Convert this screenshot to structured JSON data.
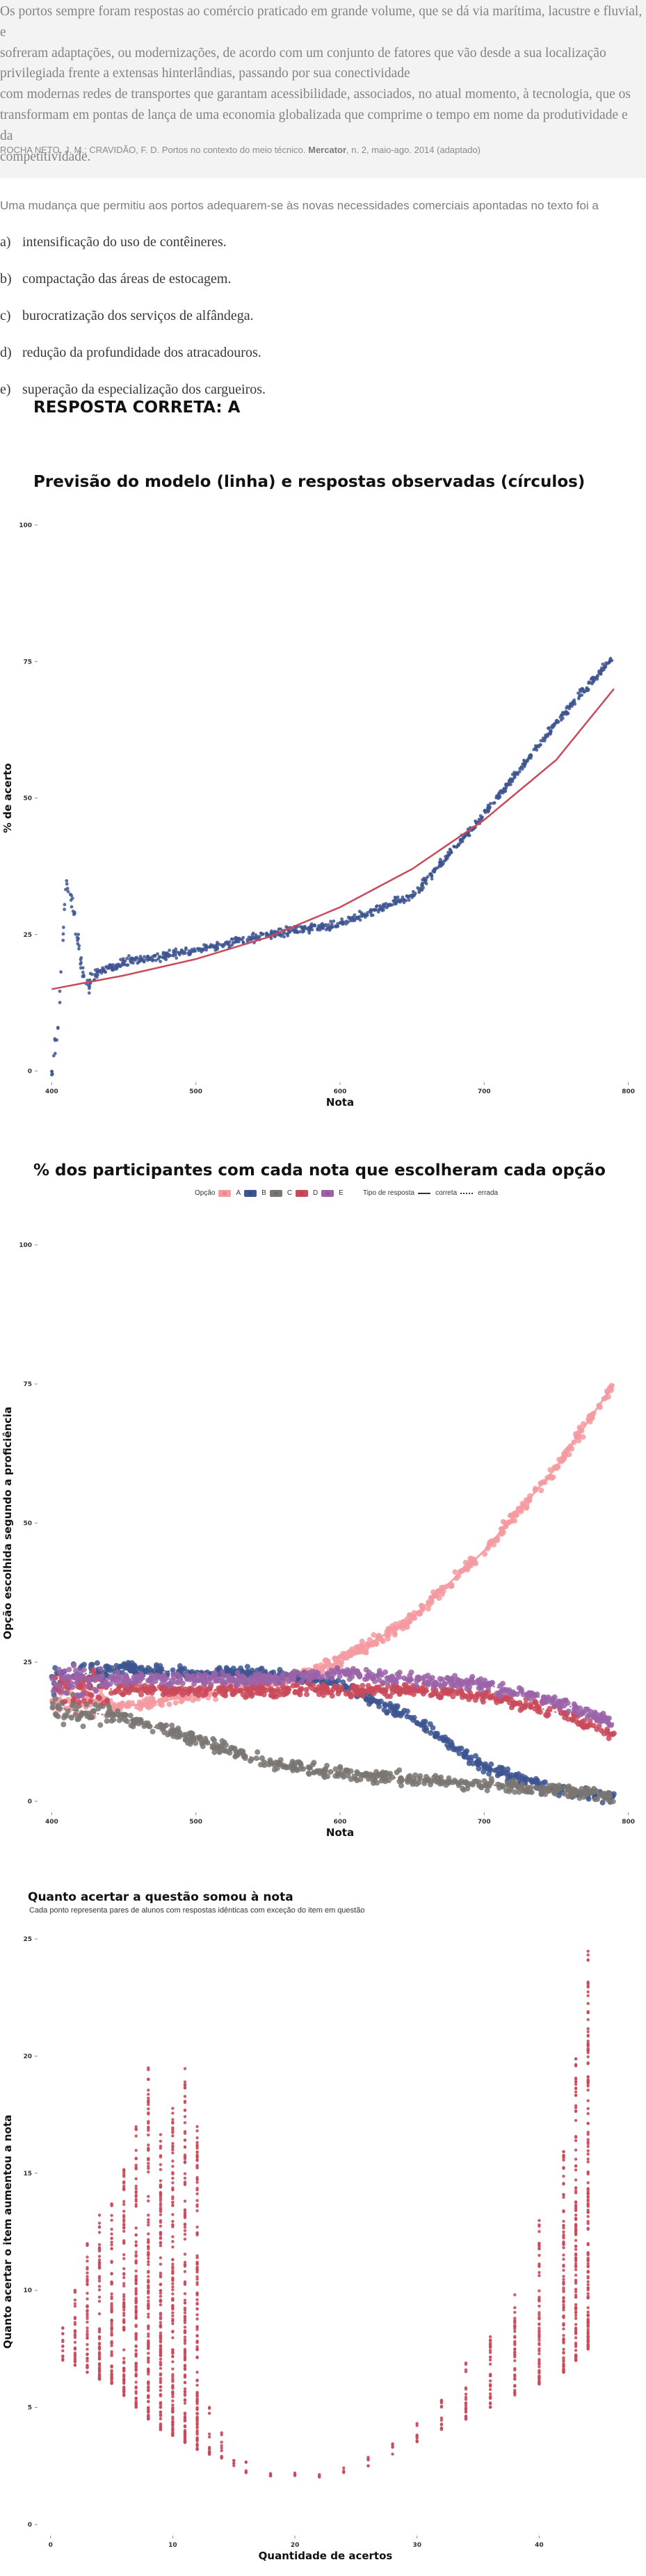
{
  "passage": {
    "text": "Os portos sempre foram respostas ao comércio praticado em grande volume, que se dá via marítima, lacustre e fluvial, e sofreram adaptações, ou modernizações, de acordo com um conjunto de fatores que vão desde a sua localização privilegiada frente a extensas hinterlândias, passando por sua conectividade com modernas redes de transportes que garantam acessibilidade, associados, no atual momento, à tecnologia, que os transformam em pontas de lança de uma economia globalizada que comprime o tempo em nome da produtividade e da competitividade.",
    "lines": [
      "Os portos sempre foram respostas ao comércio praticado em grande volume, que se dá via marítima, lacustre e fluvial, e",
      "sofreram adaptações, ou modernizações, de acordo com um conjunto de fatores que vão desde a sua localização",
      "privilegiada frente a extensas hinterlândias, passando por sua conectividade",
      "com modernas redes de transportes que garantam acessibilidade, associados, no atual momento, à tecnologia, que os",
      "transformam em pontas de lança de uma economia globalizada que comprime o tempo em nome da produtividade e da",
      "competitividade."
    ],
    "source_prefix": "ROCHA NETO, J. M.; CRAVIDÃO, F. D. Portos no contexto do meio técnico. ",
    "source_journal": "Mercator",
    "source_suffix": ", n. 2, maio-ago. 2014 (adaptado)"
  },
  "question": {
    "stem": "Uma mudança que permitiu aos portos adequarem-se às novas necessidades comerciais apontadas no texto foi a",
    "options": [
      {
        "letter": "a)",
        "text": "intensificação do uso de contêineres."
      },
      {
        "letter": "b)",
        "text": "compactação das áreas de estocagem."
      },
      {
        "letter": "c)",
        "text": "burocratização dos serviços de alfândega."
      },
      {
        "letter": "d)",
        "text": "redução da profundidade dos atracadouros."
      },
      {
        "letter": "e)",
        "text": "superação da especialização dos cargueiros."
      }
    ],
    "answer_label": "RESPOSTA CORRETA: A"
  },
  "colors": {
    "navy": "#3d5591",
    "red": "#c94a5a",
    "pink": "#f49aa0",
    "gray": "#7a7672",
    "purple": "#9b63a8",
    "mauve": "#d6829a"
  },
  "chart_data": [
    {
      "type": "scatter",
      "title": "Previsão do modelo (linha) e respostas observadas (círculos)",
      "xlabel": "Nota",
      "ylabel": "% de acerto",
      "xlim": [
        395,
        805
      ],
      "ylim": [
        0,
        100
      ],
      "xticks": [
        400,
        500,
        600,
        700,
        800
      ],
      "yticks": [
        0,
        25,
        50,
        75,
        100
      ],
      "grid": false,
      "model_line": {
        "x": [
          400,
          450,
          500,
          550,
          600,
          650,
          700,
          750,
          790
        ],
        "y": [
          15,
          17.5,
          20.5,
          24.5,
          30,
          37,
          46,
          57,
          70
        ]
      },
      "observed": {
        "x": [
          400,
          405,
          410,
          415,
          420,
          425,
          430,
          450,
          500,
          550,
          600,
          650,
          700,
          730,
          760,
          790
        ],
        "y": [
          0,
          10,
          35,
          30,
          20,
          15,
          18,
          20,
          22,
          25,
          27,
          32,
          47,
          57,
          67,
          76
        ]
      }
    },
    {
      "type": "scatter",
      "title": "% dos participantes com cada nota que escolheram cada opção",
      "xlabel": "Nota",
      "ylabel": "Opção escolhida segundo a proficiência",
      "xlim": [
        395,
        805
      ],
      "ylim": [
        0,
        100
      ],
      "xticks": [
        400,
        500,
        600,
        700,
        800
      ],
      "yticks": [
        0,
        25,
        50,
        75,
        100
      ],
      "legend": {
        "title": "Opção",
        "options": [
          "A",
          "B",
          "C",
          "D",
          "E"
        ],
        "type_title": "Tipo de resposta",
        "types": [
          "correta",
          "errada"
        ]
      },
      "legend_position": "top",
      "series": [
        {
          "name": "A",
          "x": [
            400,
            450,
            500,
            550,
            600,
            650,
            700,
            750,
            790
          ],
          "y": [
            18,
            17,
            19,
            21,
            25,
            33,
            45,
            60,
            75
          ]
        },
        {
          "name": "B",
          "x": [
            400,
            450,
            500,
            550,
            600,
            650,
            700,
            750,
            790
          ],
          "y": [
            22,
            24,
            23,
            23,
            21,
            15,
            6,
            2,
            1
          ]
        },
        {
          "name": "C",
          "x": [
            400,
            450,
            500,
            550,
            600,
            650,
            700,
            750,
            790
          ],
          "y": [
            17,
            15,
            11,
            7,
            5,
            4,
            3,
            2,
            1
          ]
        },
        {
          "name": "D",
          "x": [
            400,
            450,
            500,
            550,
            600,
            650,
            700,
            750,
            790
          ],
          "y": [
            21,
            20,
            20,
            20,
            20,
            20,
            19,
            16,
            12
          ]
        },
        {
          "name": "E",
          "x": [
            400,
            450,
            500,
            550,
            600,
            650,
            700,
            750,
            790
          ],
          "y": [
            21,
            22,
            22,
            22,
            23,
            22,
            21,
            18,
            14
          ]
        }
      ]
    },
    {
      "type": "scatter",
      "title": "Quanto acertar a questão somou à nota",
      "subtitle": "Cada ponto representa pares de alunos com respostas idênticas com exceção do item em questão",
      "xlabel": "Quantidade de acertos",
      "ylabel": "Quanto acertar o item aumentou a nota",
      "xlim": [
        -0.5,
        45.5
      ],
      "ylim": [
        0,
        25
      ],
      "xticks": [
        0,
        10,
        20,
        30,
        40
      ],
      "yticks": [
        0,
        5,
        10,
        15,
        20,
        25
      ],
      "grid": false,
      "points": {
        "x": [
          1,
          2,
          3,
          4,
          5,
          6,
          7,
          8,
          9,
          10,
          11,
          12,
          13,
          14,
          15,
          16,
          18,
          20,
          22,
          24,
          26,
          28,
          30,
          32,
          34,
          36,
          38,
          40,
          42,
          43,
          44
        ],
        "y_low": [
          7,
          6.8,
          6.5,
          6.2,
          6,
          5.5,
          5,
          4.5,
          4,
          3.8,
          3.5,
          3.2,
          3,
          2.8,
          2.5,
          2.2,
          2,
          1.8,
          2,
          2.2,
          2.5,
          3,
          3.5,
          4,
          4.5,
          5,
          5.5,
          6,
          6.5,
          7,
          7.5
        ],
        "y_high": [
          8.5,
          10,
          12,
          13.5,
          14,
          15.5,
          17,
          19.5,
          17,
          18,
          19.5,
          17,
          5,
          4,
          3,
          2.8,
          2.5,
          2.2,
          2.2,
          2.5,
          3,
          3.5,
          4.5,
          5.5,
          7,
          8.5,
          10,
          13,
          16,
          20,
          24.5
        ]
      }
    }
  ]
}
